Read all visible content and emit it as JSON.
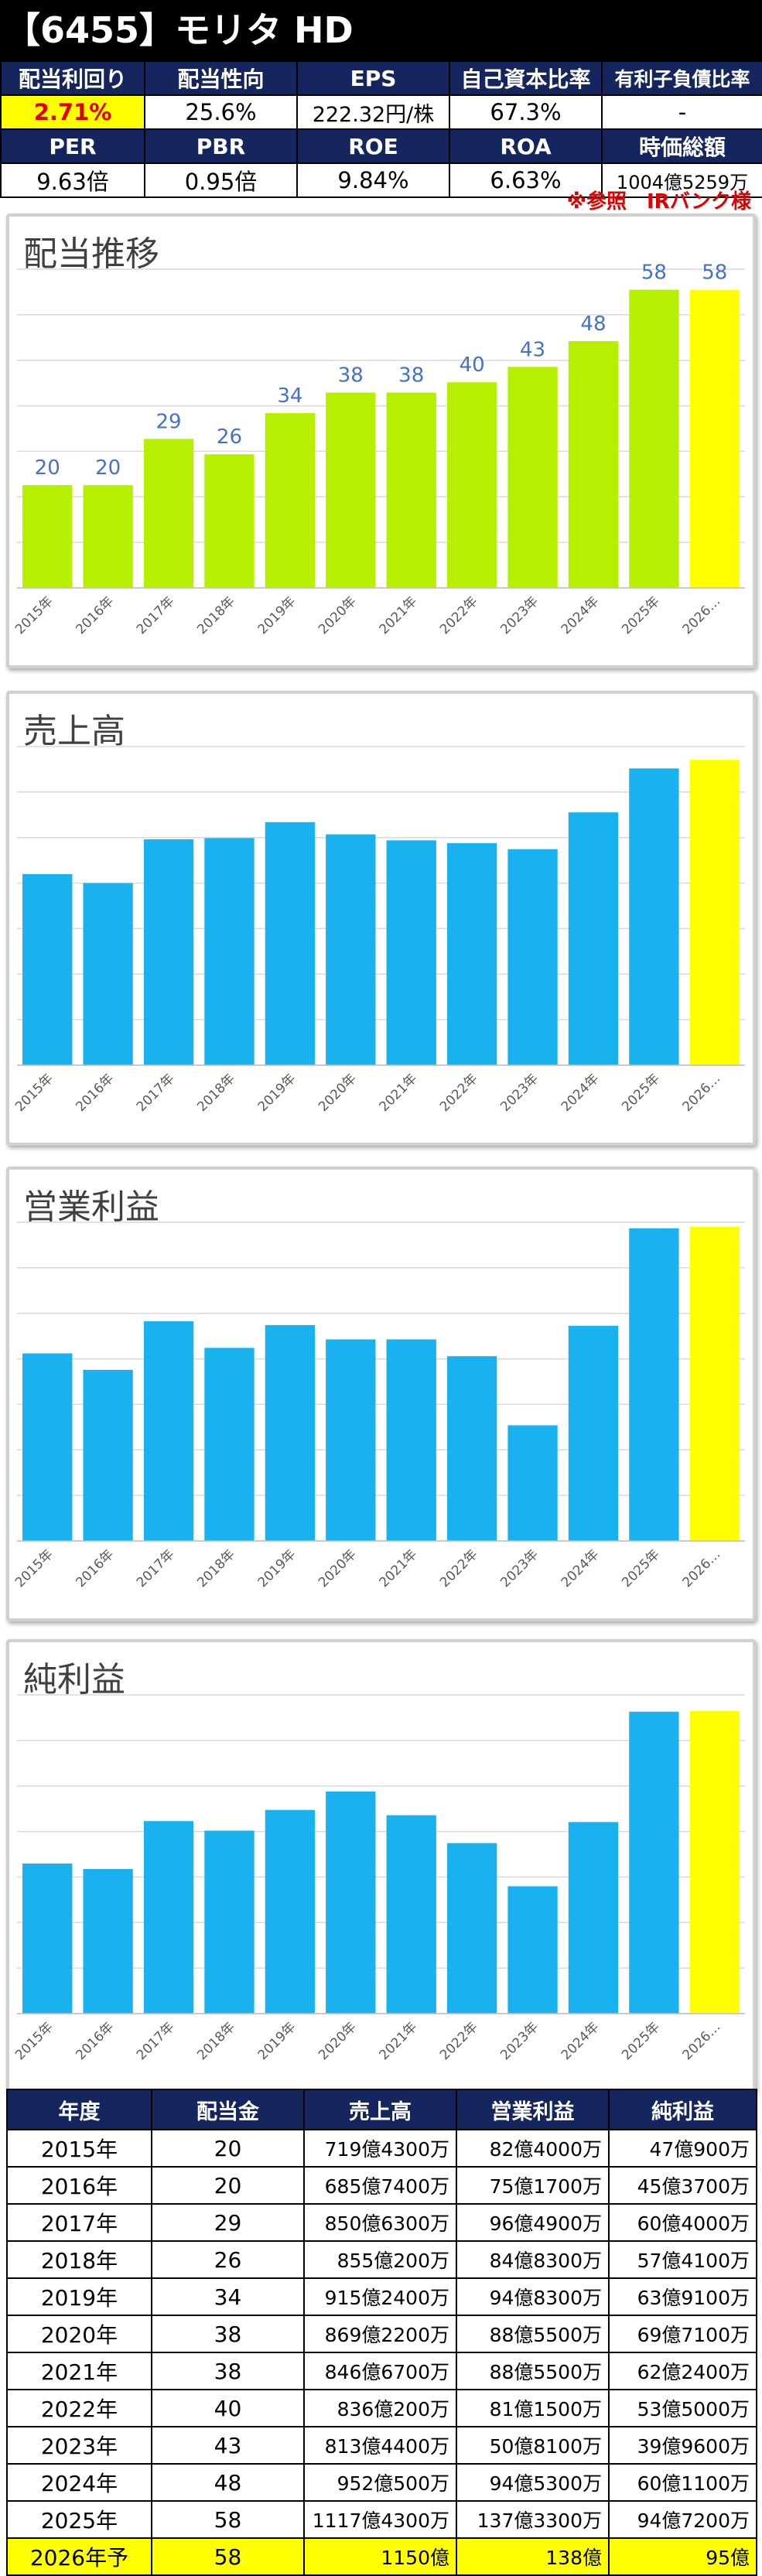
{
  "header": {
    "title": "【6455】モリタ HD",
    "row1_labels": [
      "配当利回り",
      "配当性向",
      "EPS",
      "自己資本比率",
      "有利子負債比率"
    ],
    "row1_values": [
      "2.71%",
      "25.6%",
      "222.32円/株",
      "67.3%",
      "-"
    ],
    "row2_labels": [
      "PER",
      "PBR",
      "ROE",
      "ROA",
      "時価総額"
    ],
    "row2_values": [
      "9.63倍",
      "0.95倍",
      "9.84%",
      "6.63%",
      "1004億5259万"
    ],
    "note": "※参照　IRバンク様"
  },
  "colors": {
    "navy": "#15255d",
    "dividend_bar": "#b6f000",
    "blue_bar": "#1ab2ee",
    "forecast_bar": "#ffff00",
    "highlight_text": "#e00000",
    "data_label": "#4472c4"
  },
  "chart_data": [
    {
      "type": "bar",
      "title": "配当推移",
      "categories": [
        "2015年",
        "2016年",
        "2017年",
        "2018年",
        "2019年",
        "2020年",
        "2021年",
        "2022年",
        "2023年",
        "2024年",
        "2025年",
        "2026…"
      ],
      "values": [
        20,
        20,
        29,
        26,
        34,
        38,
        38,
        40,
        43,
        48,
        58,
        58
      ],
      "data_labels": true,
      "ylim": [
        0,
        62
      ],
      "grid": true
    },
    {
      "type": "bar",
      "title": "売上高",
      "categories": [
        "2015年",
        "2016年",
        "2017年",
        "2018年",
        "2019年",
        "2020年",
        "2021年",
        "2022年",
        "2023年",
        "2024年",
        "2025年",
        "2026…"
      ],
      "values": [
        719.43,
        685.74,
        850.63,
        855.02,
        915.24,
        869.22,
        846.67,
        836.02,
        813.44,
        952.05,
        1117.43,
        1150
      ],
      "data_labels": false,
      "ylim": [
        0,
        1200
      ],
      "grid": true
    },
    {
      "type": "bar",
      "title": "営業利益",
      "categories": [
        "2015年",
        "2016年",
        "2017年",
        "2018年",
        "2019年",
        "2020年",
        "2021年",
        "2022年",
        "2023年",
        "2024年",
        "2025年",
        "2026…"
      ],
      "values": [
        82.4,
        75.17,
        96.49,
        84.83,
        94.83,
        88.55,
        88.55,
        81.15,
        50.81,
        94.53,
        137.33,
        138
      ],
      "data_labels": false,
      "ylim": [
        0,
        140
      ],
      "grid": true
    },
    {
      "type": "bar",
      "title": "純利益",
      "categories": [
        "2015年",
        "2016年",
        "2017年",
        "2018年",
        "2019年",
        "2020年",
        "2021年",
        "2022年",
        "2023年",
        "2024年",
        "2025年",
        "2026…"
      ],
      "values": [
        47.09,
        45.37,
        60.4,
        57.41,
        63.91,
        69.71,
        62.24,
        53.5,
        39.96,
        60.11,
        94.72,
        95
      ],
      "data_labels": false,
      "ylim": [
        0,
        100
      ],
      "grid": true
    }
  ],
  "table": {
    "headers": [
      "年度",
      "配当金",
      "売上高",
      "営業利益",
      "純利益"
    ],
    "rows": [
      [
        "2015年",
        "20",
        "719億4300万",
        "82億4000万",
        "47億900万"
      ],
      [
        "2016年",
        "20",
        "685億7400万",
        "75億1700万",
        "45億3700万"
      ],
      [
        "2017年",
        "29",
        "850億6300万",
        "96億4900万",
        "60億4000万"
      ],
      [
        "2018年",
        "26",
        "855億200万",
        "84億8300万",
        "57億4100万"
      ],
      [
        "2019年",
        "34",
        "915億2400万",
        "94億8300万",
        "63億9100万"
      ],
      [
        "2020年",
        "38",
        "869億2200万",
        "88億5500万",
        "69億7100万"
      ],
      [
        "2021年",
        "38",
        "846億6700万",
        "88億5500万",
        "62億2400万"
      ],
      [
        "2022年",
        "40",
        "836億200万",
        "81億1500万",
        "53億5000万"
      ],
      [
        "2023年",
        "43",
        "813億4400万",
        "50億8100万",
        "39億9600万"
      ],
      [
        "2024年",
        "48",
        "952億500万",
        "94億5300万",
        "60億1100万"
      ],
      [
        "2025年",
        "58",
        "1117億4300万",
        "137億3300万",
        "94億7200万"
      ],
      [
        "2026年予",
        "58",
        "1150億",
        "138億",
        "95億"
      ]
    ]
  }
}
